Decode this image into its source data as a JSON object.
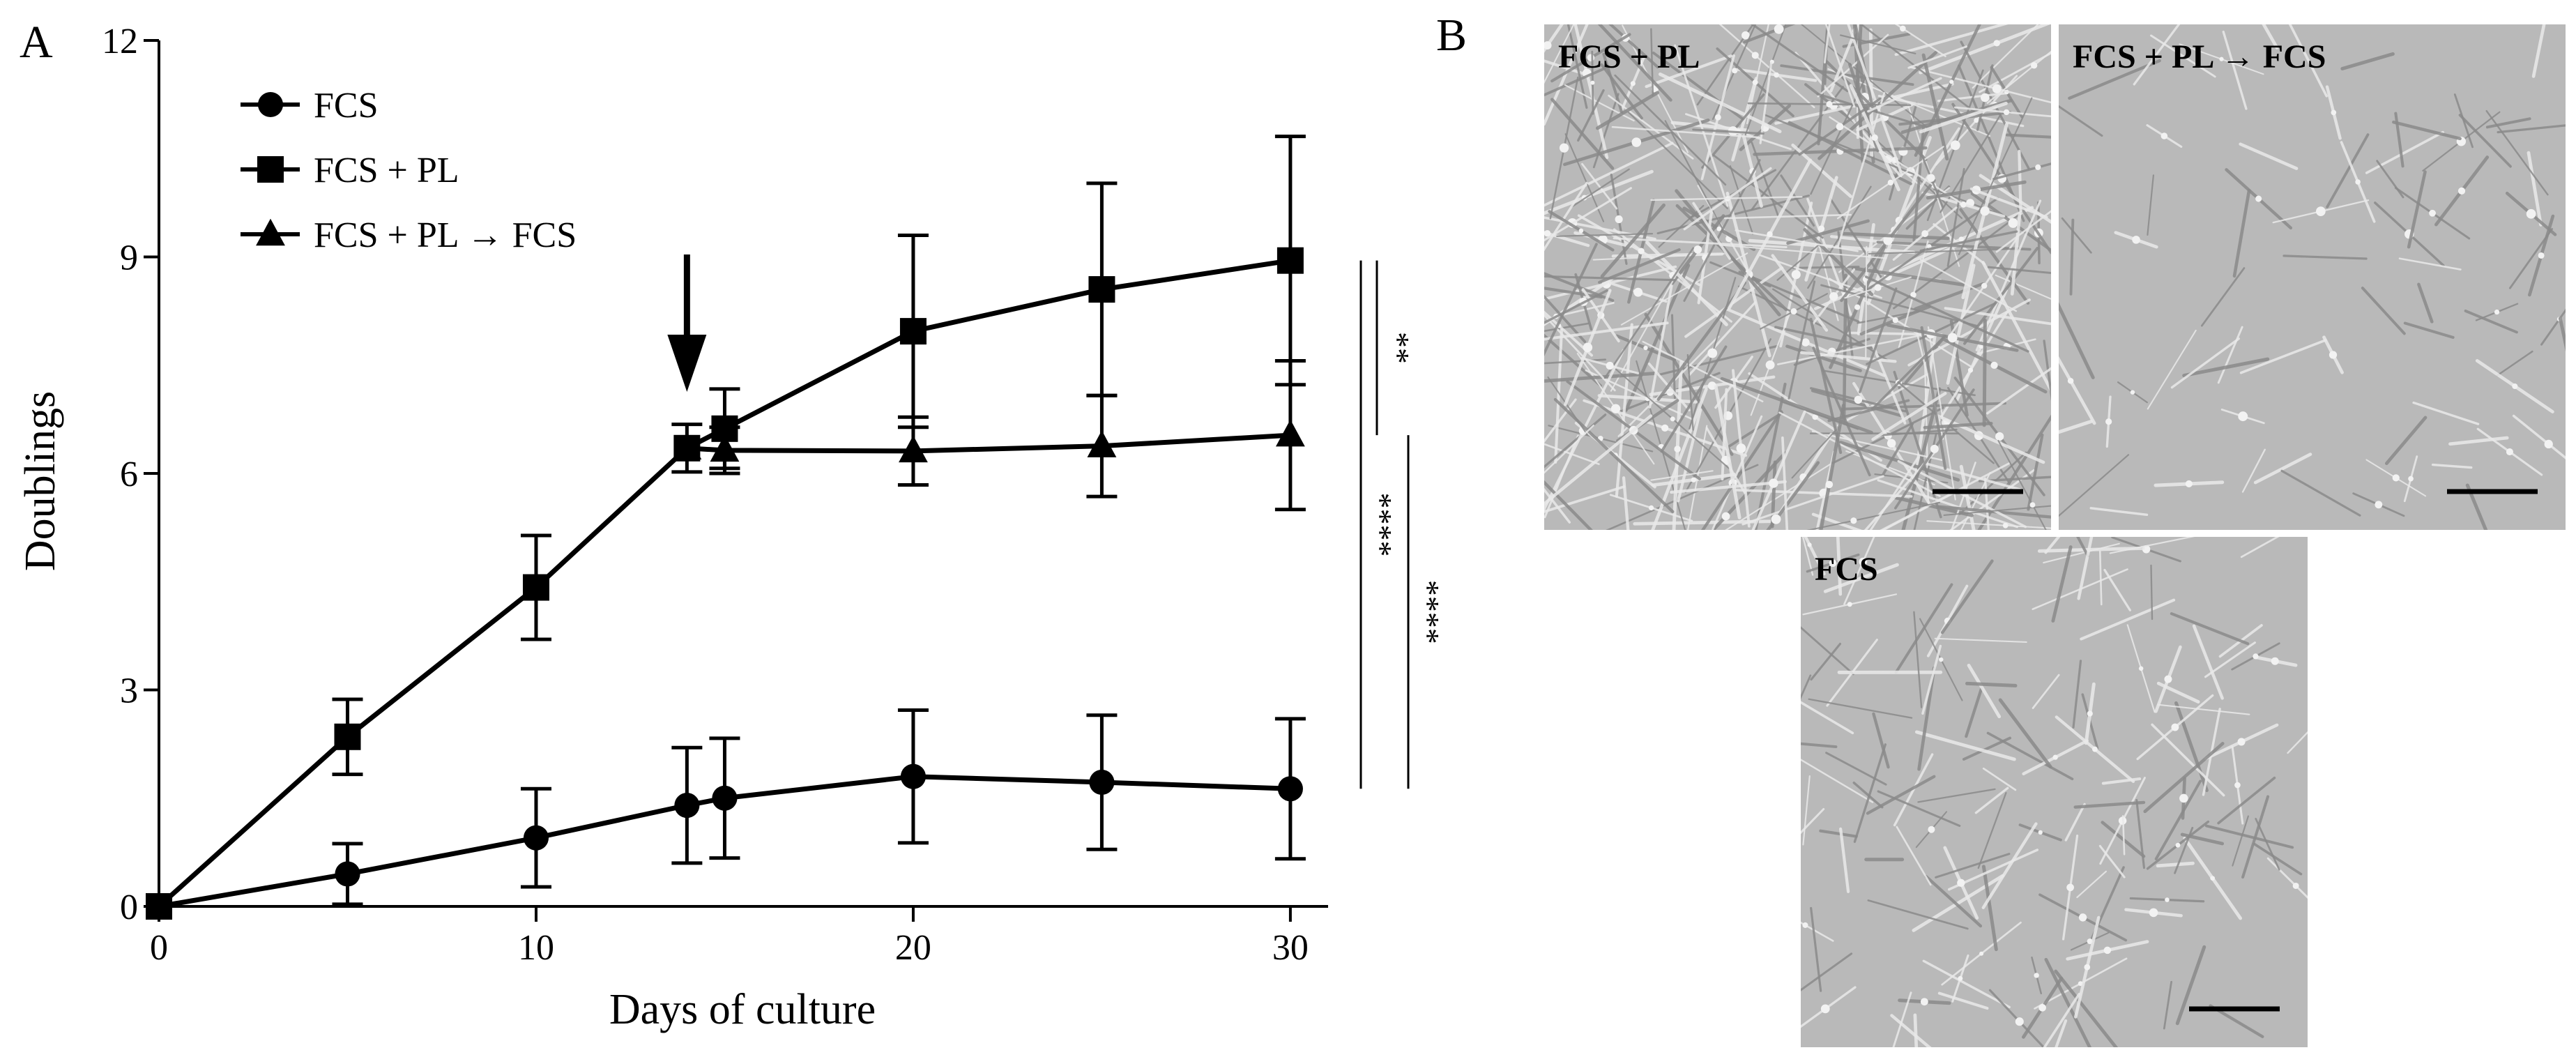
{
  "panels": {
    "a_letter": "A",
    "b_letter": "B"
  },
  "chart_data": {
    "type": "line",
    "title": "",
    "xlabel": "Days of culture",
    "ylabel": "Doublings",
    "xlim": [
      0,
      31
    ],
    "ylim": [
      0,
      12
    ],
    "x_ticks": [
      0,
      10,
      20,
      30
    ],
    "y_ticks": [
      0,
      3,
      6,
      9,
      12
    ],
    "legend_position": "top-left",
    "series": [
      {
        "name": "FCS",
        "marker": "circle",
        "points": [
          {
            "x": 0,
            "y": 0,
            "err": 0
          },
          {
            "x": 5,
            "y": 0.45,
            "err": 0.42
          },
          {
            "x": 10,
            "y": 0.95,
            "err": 0.68
          },
          {
            "x": 14,
            "y": 1.4,
            "err": 0.8
          },
          {
            "x": 15,
            "y": 1.5,
            "err": 0.83
          },
          {
            "x": 20,
            "y": 1.8,
            "err": 0.92
          },
          {
            "x": 25,
            "y": 1.72,
            "err": 0.93
          },
          {
            "x": 30,
            "y": 1.63,
            "err": 0.97
          }
        ]
      },
      {
        "name": "FCS + PL",
        "marker": "square",
        "points": [
          {
            "x": 0,
            "y": 0,
            "err": 0
          },
          {
            "x": 5,
            "y": 2.35,
            "err": 0.52
          },
          {
            "x": 10,
            "y": 4.42,
            "err": 0.72
          },
          {
            "x": 14,
            "y": 6.35,
            "err": 0.33
          },
          {
            "x": 15,
            "y": 6.62,
            "err": 0.55
          },
          {
            "x": 20,
            "y": 7.97,
            "err": 1.33
          },
          {
            "x": 25,
            "y": 8.55,
            "err": 1.47
          },
          {
            "x": 30,
            "y": 8.95,
            "err": 1.72
          }
        ]
      },
      {
        "name": "FCS + PL → FCS",
        "marker": "triangle",
        "points": [
          {
            "x": 14,
            "y": 6.35,
            "err": 0.0
          },
          {
            "x": 15,
            "y": 6.32,
            "err": 0.32
          },
          {
            "x": 20,
            "y": 6.31,
            "err": 0.47
          },
          {
            "x": 25,
            "y": 6.38,
            "err": 0.7
          },
          {
            "x": 30,
            "y": 6.53,
            "err": 1.03
          }
        ]
      }
    ],
    "annotations": {
      "arrow_at_x": 14,
      "significance": [
        {
          "label": "**",
          "between": [
            "FCS + PL",
            "FCS + PL → FCS"
          ],
          "y_from": 6.53,
          "y_to": 8.95
        },
        {
          "label": "****",
          "between": [
            "FCS + PL",
            "FCS"
          ],
          "y_from": 1.63,
          "y_to": 8.95
        },
        {
          "label": "****",
          "between": [
            "FCS + PL → FCS",
            "FCS"
          ],
          "y_from": 1.63,
          "y_to": 6.53
        }
      ]
    }
  },
  "micrographs": [
    {
      "title": "FCS + PL",
      "density": "high"
    },
    {
      "title": "FCS + PL → FCS",
      "density": "low"
    },
    {
      "title": "FCS",
      "density": "medium"
    }
  ]
}
